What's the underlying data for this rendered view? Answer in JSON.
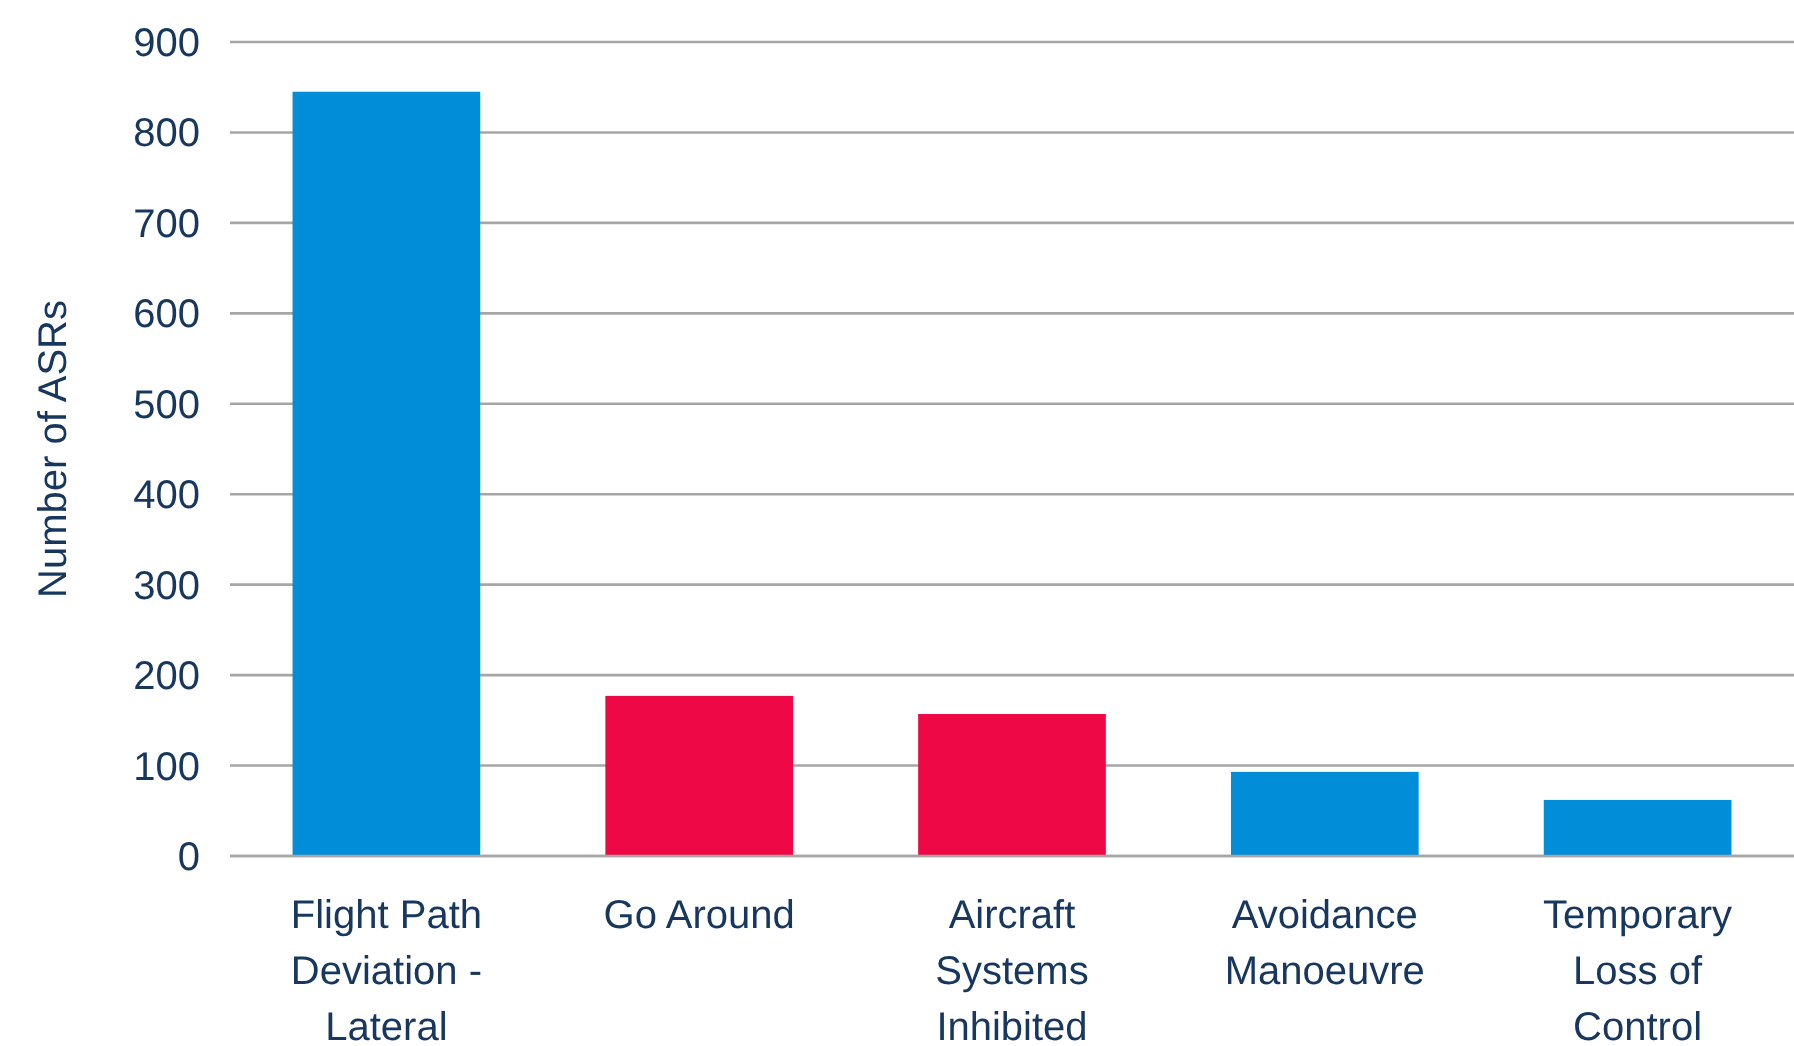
{
  "chart_data": {
    "type": "bar",
    "ylabel": "Number of ASRs",
    "categories": [
      "Flight Path Deviation - Lateral",
      "Go Around",
      "Aircraft Systems Inhibited",
      "Avoidance Manoeuvre",
      "Temporary Loss of Control"
    ],
    "values": [
      845,
      177,
      157,
      93,
      62
    ],
    "colors": [
      "#028dd8",
      "#ef0846",
      "#ef0846",
      "#028dd8",
      "#028dd8"
    ],
    "ylim": [
      0,
      900
    ],
    "yticks": [
      0,
      100,
      200,
      300,
      400,
      500,
      600,
      700,
      800,
      900
    ],
    "grid": "y"
  }
}
